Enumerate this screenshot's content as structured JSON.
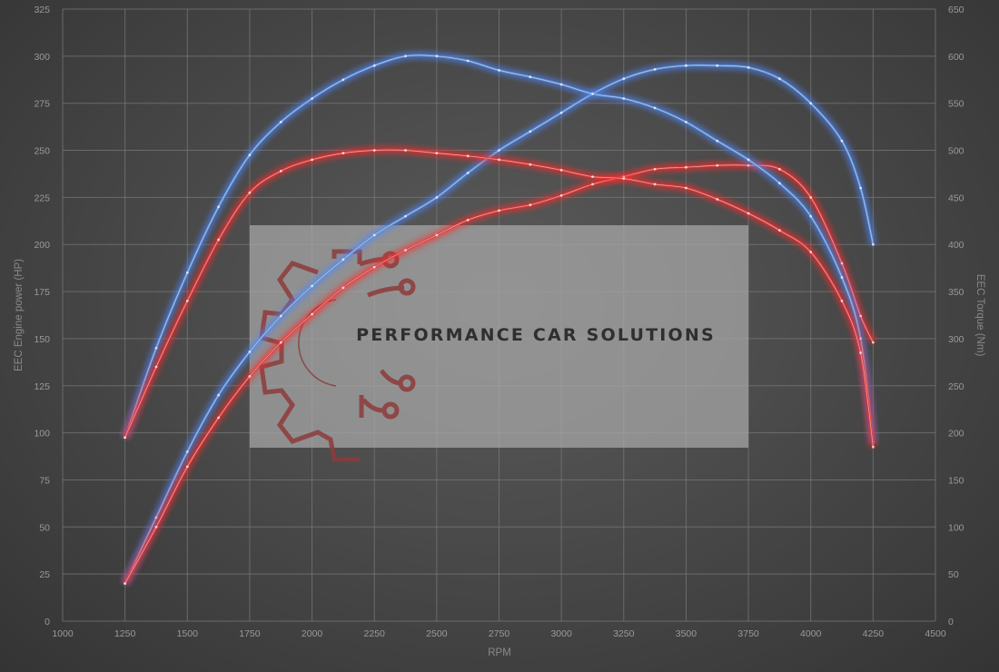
{
  "chart_data": {
    "type": "line",
    "title": "",
    "xlabel": "RPM",
    "ylabel_left": "EEC Engine power (HP)",
    "ylabel_right": "EEC Torque (Nm)",
    "xlim": [
      1000,
      4500
    ],
    "ylim_left": [
      0,
      325
    ],
    "ylim_right": [
      0,
      650
    ],
    "x_ticks": [
      "1000",
      "1250",
      "1500",
      "1750",
      "2000",
      "2250",
      "2500",
      "2750",
      "3000",
      "3250",
      "3500",
      "3750",
      "4000",
      "4250",
      "4500"
    ],
    "y_ticks_left": [
      "0",
      "25",
      "50",
      "75",
      "100",
      "125",
      "150",
      "175",
      "200",
      "225",
      "250",
      "275",
      "300",
      "325"
    ],
    "y_ticks_right": [
      "0",
      "50",
      "100",
      "150",
      "200",
      "250",
      "300",
      "350",
      "400",
      "450",
      "500",
      "550",
      "600",
      "650"
    ],
    "grid": true,
    "colors": {
      "tuned": "#5b8fd6",
      "stock": "#e03a3a",
      "tuned_glow": "#4f87ff",
      "stock_glow": "#ff2a2a"
    },
    "series": [
      {
        "axis": "left",
        "variant": "tuned",
        "x": [
          1250,
          1375,
          1500,
          1625,
          1750,
          1875,
          2000,
          2125,
          2250,
          2375,
          2500,
          2625,
          2750,
          2875,
          3000,
          3125,
          3250,
          3375,
          3500,
          3625,
          3750,
          3875,
          4000,
          4125,
          4200,
          4250
        ],
        "y": [
          20,
          55,
          90,
          120,
          143,
          162,
          178,
          192,
          205,
          215,
          225,
          238,
          250,
          260,
          270,
          280,
          288,
          293,
          295,
          295,
          294,
          288,
          275,
          255,
          230,
          200
        ]
      },
      {
        "axis": "left",
        "variant": "stock",
        "x": [
          1250,
          1375,
          1500,
          1625,
          1750,
          1875,
          2000,
          2125,
          2250,
          2375,
          2500,
          2625,
          2750,
          2875,
          3000,
          3125,
          3250,
          3375,
          3500,
          3625,
          3750,
          3875,
          4000,
          4125,
          4200,
          4250
        ],
        "y": [
          20,
          50,
          82,
          108,
          130,
          148,
          163,
          177,
          188,
          197,
          205,
          213,
          218,
          221,
          226,
          232,
          236,
          240,
          241,
          242,
          242,
          240,
          225,
          190,
          162,
          148
        ]
      },
      {
        "axis": "right",
        "variant": "tuned",
        "x": [
          1250,
          1375,
          1500,
          1625,
          1750,
          1875,
          2000,
          2125,
          2250,
          2375,
          2500,
          2625,
          2750,
          2875,
          3000,
          3125,
          3250,
          3375,
          3500,
          3625,
          3750,
          3875,
          4000,
          4125,
          4200,
          4250
        ],
        "y": [
          195,
          290,
          370,
          440,
          495,
          530,
          555,
          575,
          590,
          600,
          600,
          595,
          585,
          578,
          570,
          560,
          555,
          545,
          530,
          510,
          490,
          465,
          430,
          365,
          300,
          190
        ]
      },
      {
        "axis": "right",
        "variant": "stock",
        "x": [
          1250,
          1375,
          1500,
          1625,
          1750,
          1875,
          2000,
          2125,
          2250,
          2375,
          2500,
          2625,
          2750,
          2875,
          3000,
          3125,
          3250,
          3375,
          3500,
          3625,
          3750,
          3875,
          4000,
          4125,
          4200,
          4250
        ],
        "y": [
          195,
          270,
          340,
          405,
          455,
          478,
          490,
          497,
          500,
          500,
          497,
          494,
          490,
          485,
          479,
          472,
          470,
          464,
          460,
          448,
          433,
          415,
          392,
          340,
          285,
          185
        ]
      }
    ]
  },
  "watermark": {
    "text": "PERFORMANCE CAR SOLUTIONS"
  }
}
